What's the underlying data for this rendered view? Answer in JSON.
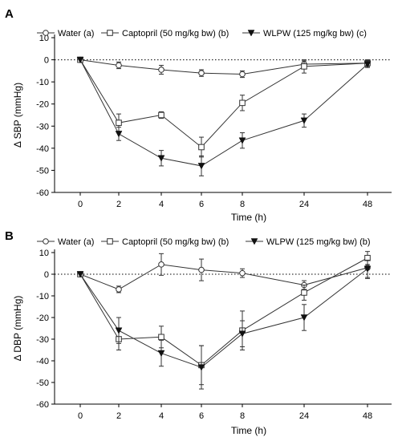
{
  "panels": [
    {
      "letter": "A",
      "chart_data": {
        "type": "line",
        "x": [
          0,
          2,
          4,
          6,
          8,
          24,
          48
        ],
        "x_tick_labels": [
          "0",
          "2",
          "4",
          "6",
          "8",
          "24",
          "48"
        ],
        "xlabel": "Time (h)",
        "ylabel": "Δ SBP (mmHg)",
        "ylim": [
          -60,
          10
        ],
        "y_ticks": [
          10,
          0,
          -10,
          -20,
          -30,
          -40,
          -50,
          -60
        ],
        "reference_line": 0,
        "legend_position": "top",
        "series": [
          {
            "name": "Water (a)",
            "marker": "open-circle",
            "color": "#333333",
            "values": [
              0,
              -2.5,
              -4.5,
              -6,
              -6.5,
              -2,
              -1.5
            ],
            "errors": [
              0,
              1.5,
              2,
              1.5,
              1.5,
              1.5,
              1.5
            ]
          },
          {
            "name": "Captopril (50 mg/kg bw) (b)",
            "marker": "open-square",
            "color": "#333333",
            "values": [
              0,
              -28.5,
              -25,
              -39.5,
              -19.5,
              -3,
              -1.5
            ],
            "errors": [
              0,
              4,
              1.5,
              4.5,
              3.5,
              3,
              1.5
            ]
          },
          {
            "name": "WLPW (125 mg/kg bw) (c)",
            "marker": "filled-triangle-down",
            "color": "#222222",
            "values": [
              0,
              -33.5,
              -44.5,
              -48,
              -36.5,
              -27.5,
              -2
            ],
            "errors": [
              0,
              3,
              3.5,
              4.5,
              3.5,
              3,
              1.5
            ]
          }
        ]
      }
    },
    {
      "letter": "B",
      "chart_data": {
        "type": "line",
        "x": [
          0,
          2,
          4,
          6,
          8,
          24,
          48
        ],
        "x_tick_labels": [
          "0",
          "2",
          "4",
          "6",
          "8",
          "24",
          "48"
        ],
        "xlabel": "Time (h)",
        "ylabel": "Δ DBP (mmHg)",
        "ylim": [
          -60,
          10
        ],
        "y_ticks": [
          10,
          0,
          -10,
          -20,
          -30,
          -40,
          -50,
          -60
        ],
        "reference_line": 0,
        "legend_position": "top",
        "series": [
          {
            "name": "Water (a)",
            "marker": "open-circle",
            "color": "#333333",
            "values": [
              0,
              -7,
              4.5,
              2,
              0.5,
              -5,
              3
            ],
            "errors": [
              0,
              1.5,
              5,
              5,
              2,
              2,
              5
            ]
          },
          {
            "name": "Captopril (50 mg/kg bw) (b)",
            "marker": "open-square",
            "color": "#333333",
            "values": [
              0,
              -30,
              -29,
              -42,
              -26,
              -8.5,
              7.5
            ],
            "errors": [
              0,
              5,
              5,
              9,
              9,
              3.5,
              3
            ]
          },
          {
            "name": "WLPW (125 mg/kg bw) (b)",
            "marker": "filled-triangle-down",
            "color": "#222222",
            "values": [
              0,
              -26,
              -36.5,
              -43,
              -27.5,
              -20,
              2.5
            ],
            "errors": [
              0,
              6,
              6,
              10,
              6,
              6,
              4
            ]
          }
        ]
      }
    }
  ]
}
